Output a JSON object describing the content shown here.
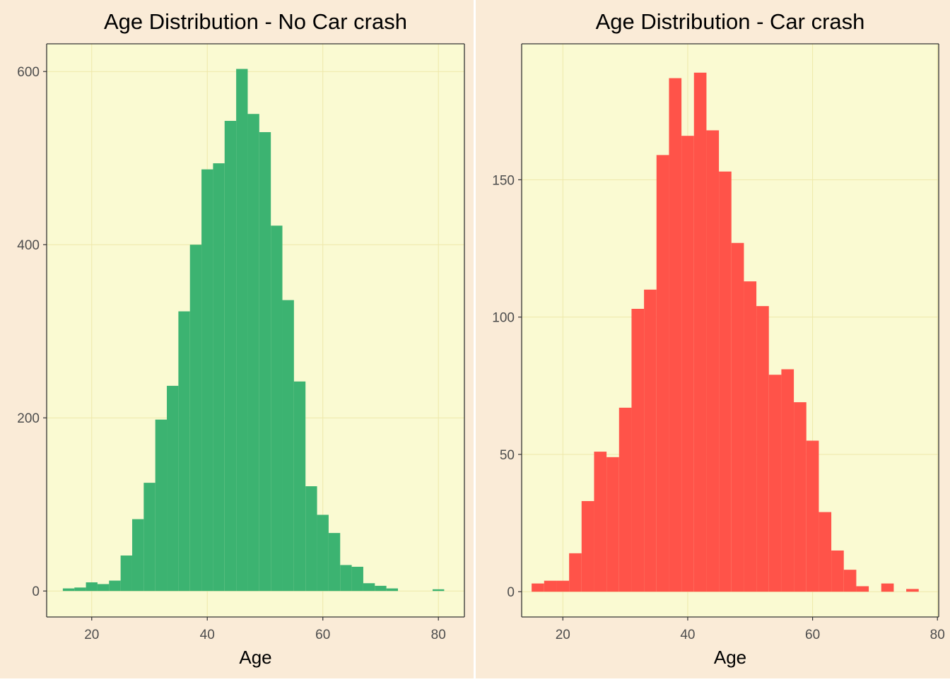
{
  "colors": {
    "panel_bg": "#FAEBD7",
    "plot_bg": "#FAFAD2",
    "grid": "#EEE8AA",
    "no_crash_fill": "#3CB371",
    "crash_fill": "#FF5349",
    "axis_text": "#4D4D4D",
    "title_text": "#000000"
  },
  "chart_data": [
    {
      "type": "bar",
      "histogram": true,
      "title": "Age Distribution - No Car crash",
      "xlabel": "Age",
      "ylabel": "",
      "xlim": [
        12.2,
        84.5
      ],
      "ylim": [
        -30,
        632
      ],
      "x_ticks": [
        20,
        40,
        60,
        80
      ],
      "y_ticks": [
        0,
        200,
        400,
        600
      ],
      "grid": true,
      "bin_width": 2,
      "bins": [
        {
          "x0": 15,
          "x1": 17,
          "count": 3
        },
        {
          "x0": 17,
          "x1": 19,
          "count": 4
        },
        {
          "x0": 19,
          "x1": 21,
          "count": 10
        },
        {
          "x0": 21,
          "x1": 23,
          "count": 8
        },
        {
          "x0": 23,
          "x1": 25,
          "count": 12
        },
        {
          "x0": 25,
          "x1": 27,
          "count": 41
        },
        {
          "x0": 27,
          "x1": 29,
          "count": 83
        },
        {
          "x0": 29,
          "x1": 31,
          "count": 125
        },
        {
          "x0": 31,
          "x1": 33,
          "count": 198
        },
        {
          "x0": 33,
          "x1": 35,
          "count": 237
        },
        {
          "x0": 35,
          "x1": 37,
          "count": 323
        },
        {
          "x0": 37,
          "x1": 39,
          "count": 400
        },
        {
          "x0": 39,
          "x1": 41,
          "count": 487
        },
        {
          "x0": 41,
          "x1": 43,
          "count": 494
        },
        {
          "x0": 43,
          "x1": 45,
          "count": 543
        },
        {
          "x0": 45,
          "x1": 47,
          "count": 603
        },
        {
          "x0": 47,
          "x1": 49,
          "count": 551
        },
        {
          "x0": 49,
          "x1": 51,
          "count": 530
        },
        {
          "x0": 51,
          "x1": 53,
          "count": 422
        },
        {
          "x0": 53,
          "x1": 55,
          "count": 336
        },
        {
          "x0": 55,
          "x1": 57,
          "count": 242
        },
        {
          "x0": 57,
          "x1": 59,
          "count": 121
        },
        {
          "x0": 59,
          "x1": 61,
          "count": 88
        },
        {
          "x0": 61,
          "x1": 63,
          "count": 67
        },
        {
          "x0": 63,
          "x1": 65,
          "count": 30
        },
        {
          "x0": 65,
          "x1": 67,
          "count": 28
        },
        {
          "x0": 67,
          "x1": 69,
          "count": 9
        },
        {
          "x0": 69,
          "x1": 71,
          "count": 6
        },
        {
          "x0": 71,
          "x1": 73,
          "count": 3
        },
        {
          "x0": 79,
          "x1": 81,
          "count": 2
        }
      ]
    },
    {
      "type": "bar",
      "histogram": true,
      "title": "Age Distribution - Car crash",
      "xlabel": "Age",
      "ylabel": "",
      "xlim": [
        13.4,
        80.2
      ],
      "ylim": [
        -9.2,
        199.5
      ],
      "x_ticks": [
        20,
        40,
        60,
        80
      ],
      "y_ticks": [
        0,
        50,
        100,
        150
      ],
      "grid": true,
      "bin_width": 2,
      "bins": [
        {
          "x0": 15,
          "x1": 17,
          "count": 3
        },
        {
          "x0": 17,
          "x1": 19,
          "count": 4
        },
        {
          "x0": 19,
          "x1": 21,
          "count": 4
        },
        {
          "x0": 21,
          "x1": 23,
          "count": 14
        },
        {
          "x0": 23,
          "x1": 25,
          "count": 33
        },
        {
          "x0": 25,
          "x1": 27,
          "count": 51
        },
        {
          "x0": 27,
          "x1": 29,
          "count": 49
        },
        {
          "x0": 29,
          "x1": 31,
          "count": 67
        },
        {
          "x0": 31,
          "x1": 33,
          "count": 103
        },
        {
          "x0": 33,
          "x1": 35,
          "count": 110
        },
        {
          "x0": 35,
          "x1": 37,
          "count": 159
        },
        {
          "x0": 37,
          "x1": 39,
          "count": 187
        },
        {
          "x0": 39,
          "x1": 41,
          "count": 166
        },
        {
          "x0": 41,
          "x1": 43,
          "count": 189
        },
        {
          "x0": 43,
          "x1": 45,
          "count": 168
        },
        {
          "x0": 45,
          "x1": 47,
          "count": 153
        },
        {
          "x0": 47,
          "x1": 49,
          "count": 127
        },
        {
          "x0": 49,
          "x1": 51,
          "count": 113
        },
        {
          "x0": 51,
          "x1": 53,
          "count": 104
        },
        {
          "x0": 53,
          "x1": 55,
          "count": 79
        },
        {
          "x0": 55,
          "x1": 57,
          "count": 81
        },
        {
          "x0": 57,
          "x1": 59,
          "count": 69
        },
        {
          "x0": 59,
          "x1": 61,
          "count": 55
        },
        {
          "x0": 61,
          "x1": 63,
          "count": 29
        },
        {
          "x0": 63,
          "x1": 65,
          "count": 15
        },
        {
          "x0": 65,
          "x1": 67,
          "count": 8
        },
        {
          "x0": 67,
          "x1": 69,
          "count": 2
        },
        {
          "x0": 71,
          "x1": 73,
          "count": 3
        },
        {
          "x0": 75,
          "x1": 77,
          "count": 1
        }
      ]
    }
  ]
}
